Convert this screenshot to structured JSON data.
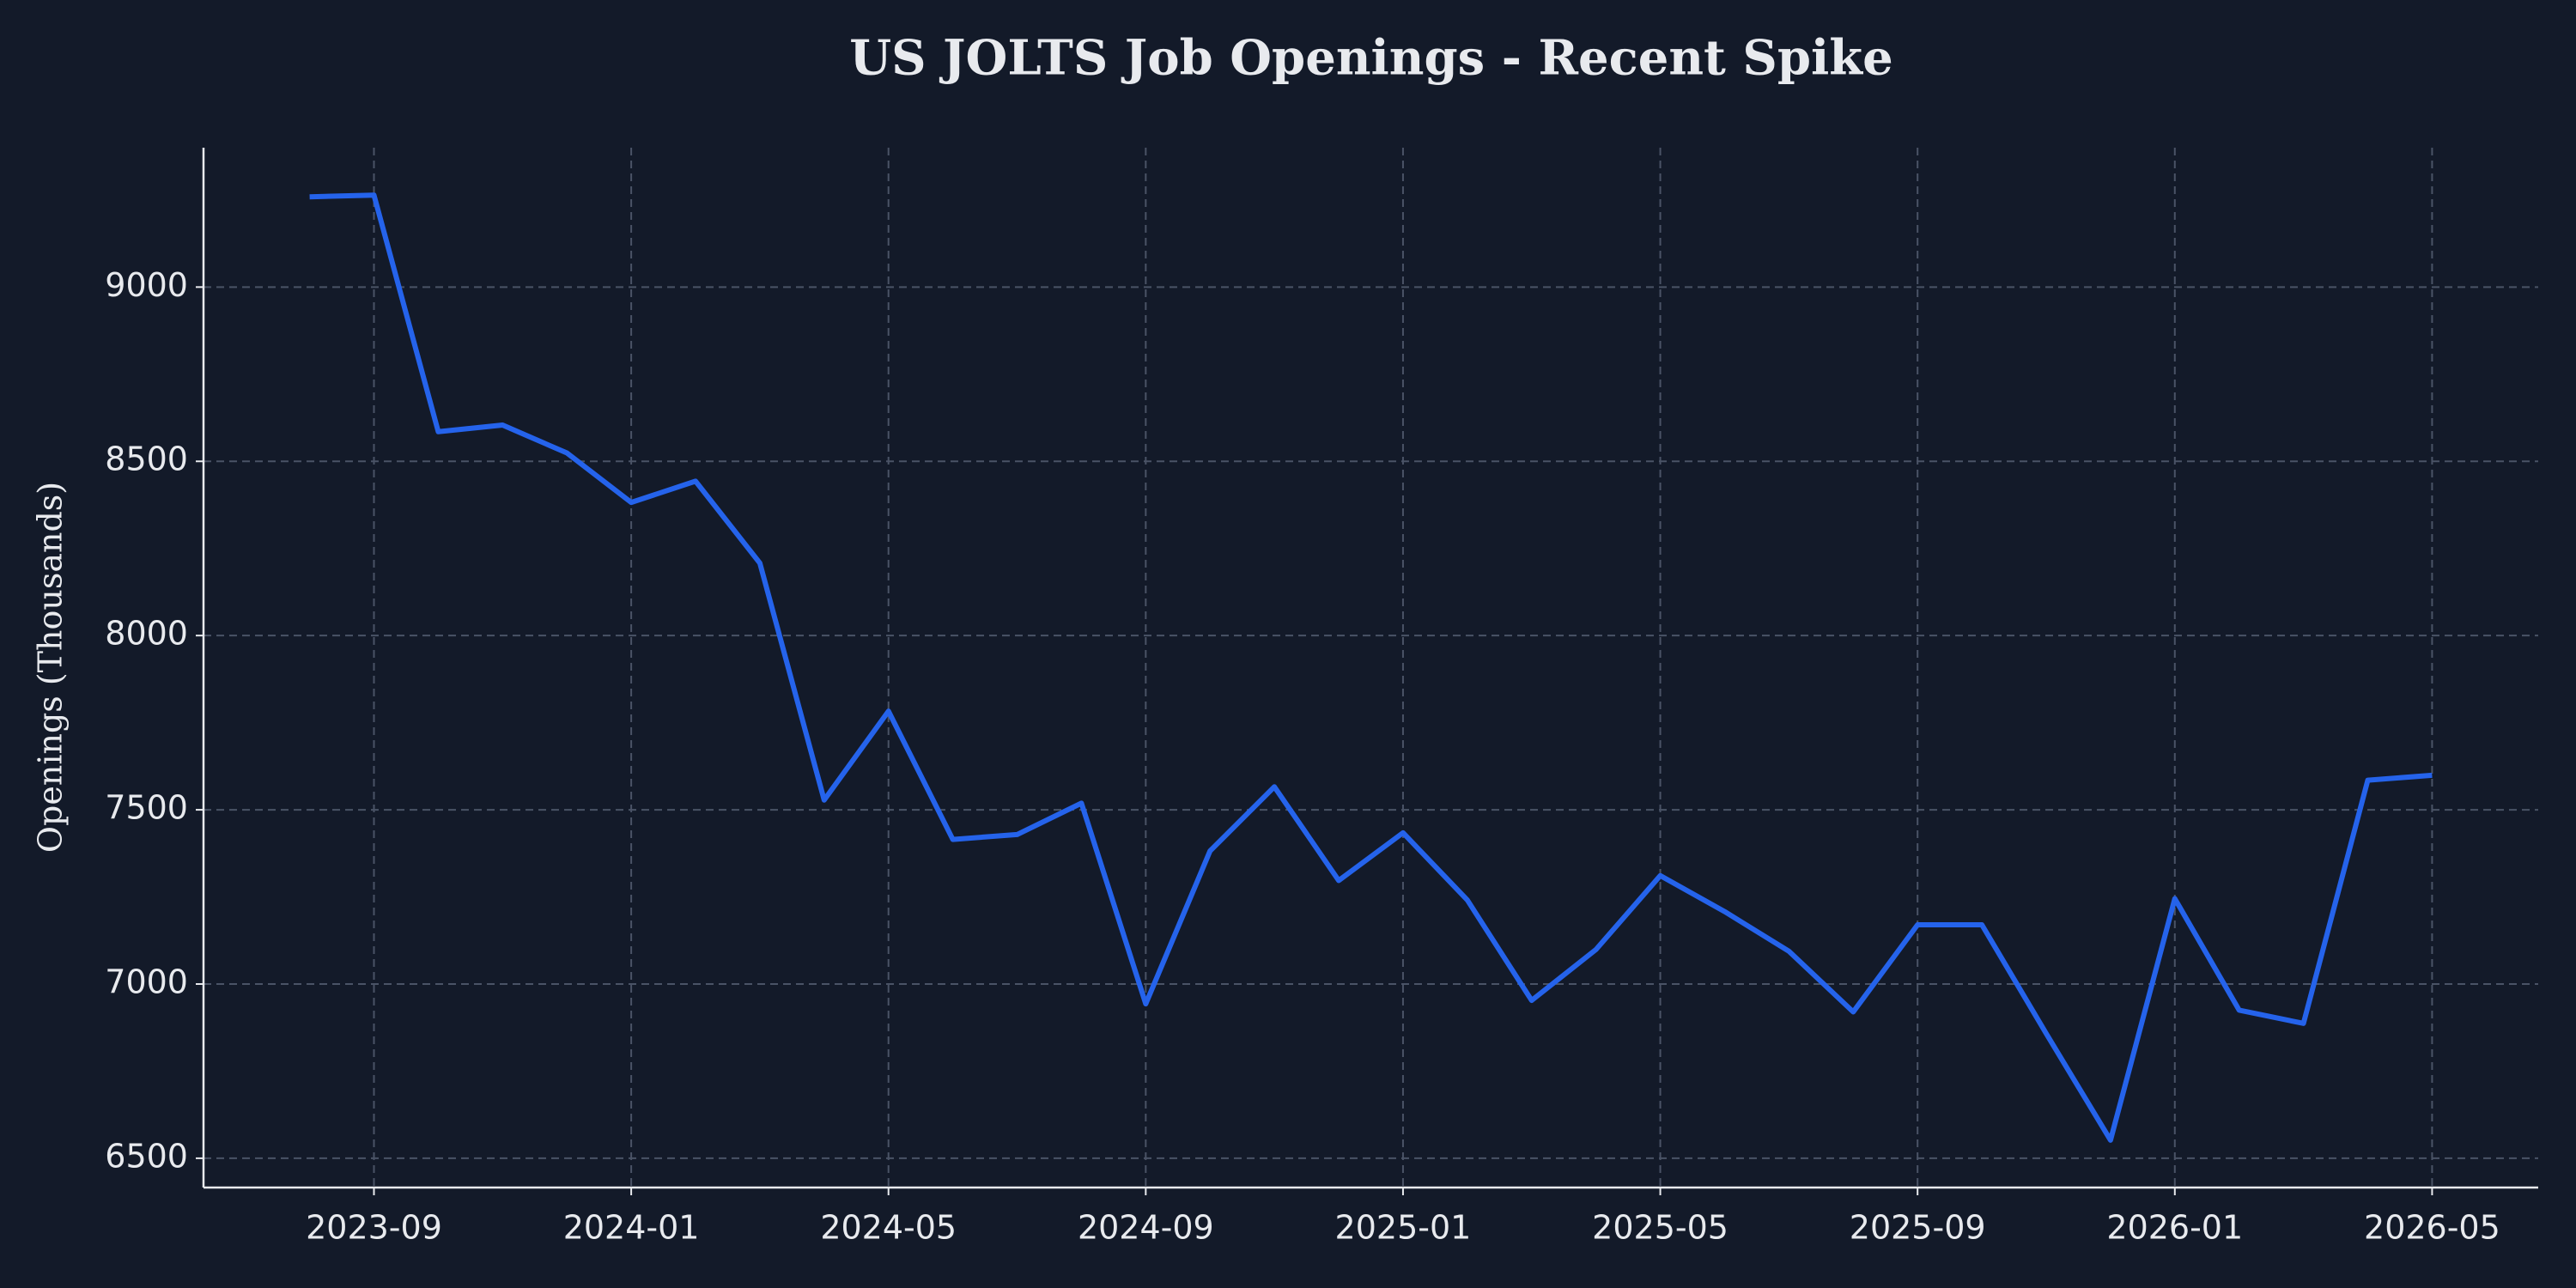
{
  "chart_data": {
    "type": "line",
    "title": "US JOLTS Job Openings - Recent Spike",
    "y_label": "Openings (Thousands)",
    "x": [
      "2023-08",
      "2023-09",
      "2023-10",
      "2023-11",
      "2023-12",
      "2024-01",
      "2024-02",
      "2024-03",
      "2024-04",
      "2024-05",
      "2024-06",
      "2024-07",
      "2024-08",
      "2024-09",
      "2024-10",
      "2024-11",
      "2024-12",
      "2025-01",
      "2025-02",
      "2025-03",
      "2025-04",
      "2025-05",
      "2025-06",
      "2025-07",
      "2025-08",
      "2025-09",
      "2025-10",
      "2025-11",
      "2025-12",
      "2026-01",
      "2026-02",
      "2026-03",
      "2026-04",
      "2026-05"
    ],
    "series": [
      {
        "color": "#2563eb",
        "values": [
          9259,
          9264,
          8585,
          8604,
          8524,
          8382,
          8443,
          8208,
          7528,
          7783,
          7415,
          7429,
          7519,
          6943,
          7382,
          7566,
          7297,
          7434,
          7241,
          6953,
          7099,
          7311,
          7208,
          7094,
          6920,
          7170,
          7170,
          6858,
          6552,
          7245,
          6925,
          6887,
          7585,
          7599
        ]
      }
    ],
    "ylim": [
      6416,
      9400
    ],
    "yticks": [
      6500,
      7000,
      7500,
      8000,
      8500,
      9000
    ],
    "xticks": [
      "2023-09",
      "2024-01",
      "2024-05",
      "2024-09",
      "2025-01",
      "2025-05",
      "2025-09",
      "2026-01",
      "2026-05"
    ],
    "grid": true
  }
}
